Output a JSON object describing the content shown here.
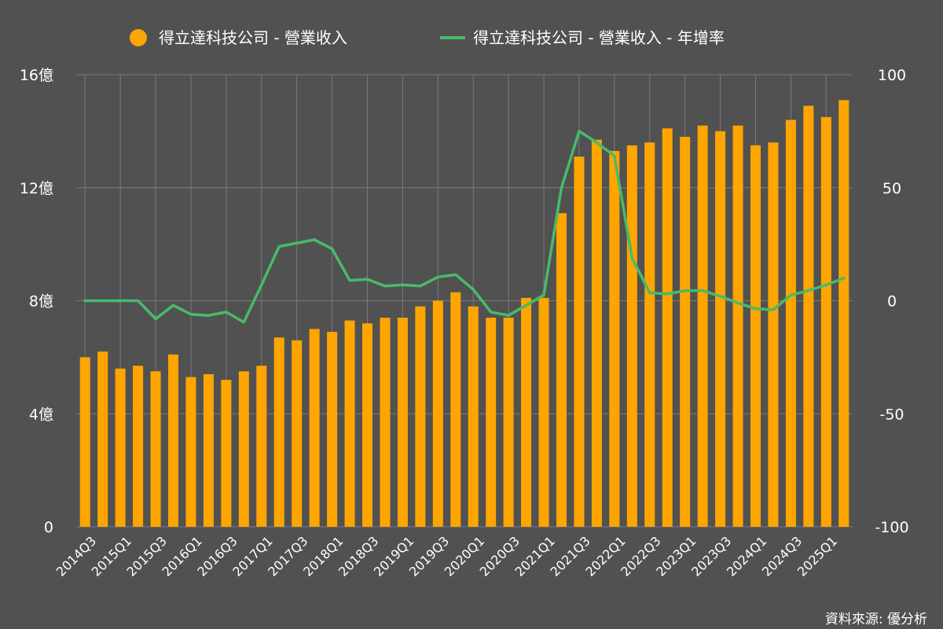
{
  "chart_data": {
    "type": "bar+line",
    "title": "",
    "colors": {
      "background": "#515151",
      "bar": "#FFA500",
      "line": "#48BA6B",
      "grid": "#7a7a7a",
      "text": "#ffffff"
    },
    "legend": {
      "placement": "top-center",
      "bar_label": "得立達科技公司 - 營業收入",
      "line_label": "得立達科技公司 - 營業收入 - 年增率"
    },
    "left_axis": {
      "ylim": [
        0,
        16
      ],
      "ticks": [
        0,
        4,
        8,
        12,
        16
      ],
      "tick_labels": [
        "0",
        "4億",
        "8億",
        "12億",
        "16億"
      ]
    },
    "right_axis": {
      "ylim": [
        -100,
        100
      ],
      "ticks": [
        -100,
        -50,
        0,
        50,
        100
      ],
      "tick_labels": [
        "-100",
        "-50",
        "0",
        "50",
        "100"
      ]
    },
    "x_tick_labels": [
      "2014Q3",
      "2015Q1",
      "2015Q3",
      "2016Q1",
      "2016Q3",
      "2017Q1",
      "2017Q3",
      "2018Q1",
      "2018Q3",
      "2019Q1",
      "2019Q3",
      "2020Q1",
      "2020Q3",
      "2021Q1",
      "2021Q3",
      "2022Q1",
      "2022Q3",
      "2023Q1",
      "2023Q3",
      "2024Q1",
      "2024Q3",
      "2025Q1"
    ],
    "categories": [
      "2014Q3",
      "2014Q4",
      "2015Q1",
      "2015Q2",
      "2015Q3",
      "2015Q4",
      "2016Q1",
      "2016Q2",
      "2016Q3",
      "2016Q4",
      "2017Q1",
      "2017Q2",
      "2017Q3",
      "2017Q4",
      "2018Q1",
      "2018Q2",
      "2018Q3",
      "2018Q4",
      "2019Q1",
      "2019Q2",
      "2019Q3",
      "2019Q4",
      "2020Q1",
      "2020Q2",
      "2020Q3",
      "2020Q4",
      "2021Q1",
      "2021Q2",
      "2021Q3",
      "2021Q4",
      "2022Q1",
      "2022Q2",
      "2022Q3",
      "2022Q4",
      "2023Q1",
      "2023Q2",
      "2023Q3",
      "2023Q4",
      "2024Q1",
      "2024Q2",
      "2024Q3",
      "2024Q4",
      "2025Q1",
      "2025Q2"
    ],
    "series": [
      {
        "name": "得立達科技公司 - 營業收入",
        "type": "bar",
        "axis": "left",
        "unit": "億",
        "values": [
          6.0,
          6.2,
          5.6,
          5.7,
          5.5,
          6.1,
          5.3,
          5.4,
          5.2,
          5.5,
          5.7,
          6.7,
          6.6,
          7.0,
          6.9,
          7.3,
          7.2,
          7.4,
          7.4,
          7.8,
          8.0,
          8.3,
          7.8,
          7.4,
          7.4,
          8.1,
          8.1,
          11.1,
          13.1,
          13.7,
          13.3,
          13.5,
          13.6,
          14.1,
          13.8,
          14.2,
          14.0,
          14.2,
          13.5,
          13.6,
          14.4,
          14.9,
          14.5,
          15.1
        ]
      },
      {
        "name": "得立達科技公司 - 營業收入 - 年增率",
        "type": "line",
        "axis": "right",
        "unit": "%",
        "values": [
          0,
          0,
          0,
          0,
          -8,
          -2,
          -6,
          -6.5,
          -5,
          -9.5,
          7,
          24,
          25.5,
          27,
          23,
          9,
          9.5,
          6.5,
          7,
          6.5,
          10.5,
          11.5,
          5,
          -5,
          -6.5,
          -2,
          2.5,
          50,
          75,
          70,
          64,
          19,
          3.5,
          3,
          4.5,
          4.5,
          2,
          -1,
          -3.5,
          -4,
          2.5,
          4.5,
          7,
          10
        ]
      }
    ],
    "source": "資料來源: 優分析"
  }
}
